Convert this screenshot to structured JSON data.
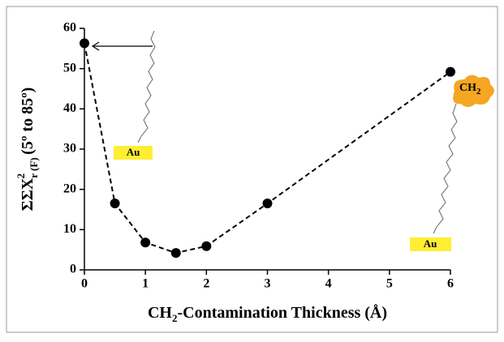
{
  "chart_data": {
    "type": "line",
    "x_label": {
      "main": "CH",
      "sub": "2",
      "rest": "-Contamination Thickness (Å)"
    },
    "y_label": {
      "main": "ΣΣX",
      "sub": "r (F)",
      "sup": "2",
      "rest": " (5º to 85º)"
    },
    "x": [
      0,
      0.5,
      1,
      1.5,
      2,
      3,
      6
    ],
    "values": [
      56.3,
      16.5,
      6.8,
      4.2,
      5.9,
      16.5,
      49.2
    ],
    "color": "#000000",
    "xlim": [
      0,
      6
    ],
    "xticks": [
      0,
      1,
      2,
      3,
      4,
      5,
      6
    ],
    "ylim": [
      0,
      60
    ],
    "yticks": [
      0,
      10,
      20,
      30,
      40,
      50,
      60
    ],
    "annotations": [
      "Au",
      "Au"
    ],
    "cloud_label": {
      "main": "CH",
      "sub": "2"
    }
  }
}
